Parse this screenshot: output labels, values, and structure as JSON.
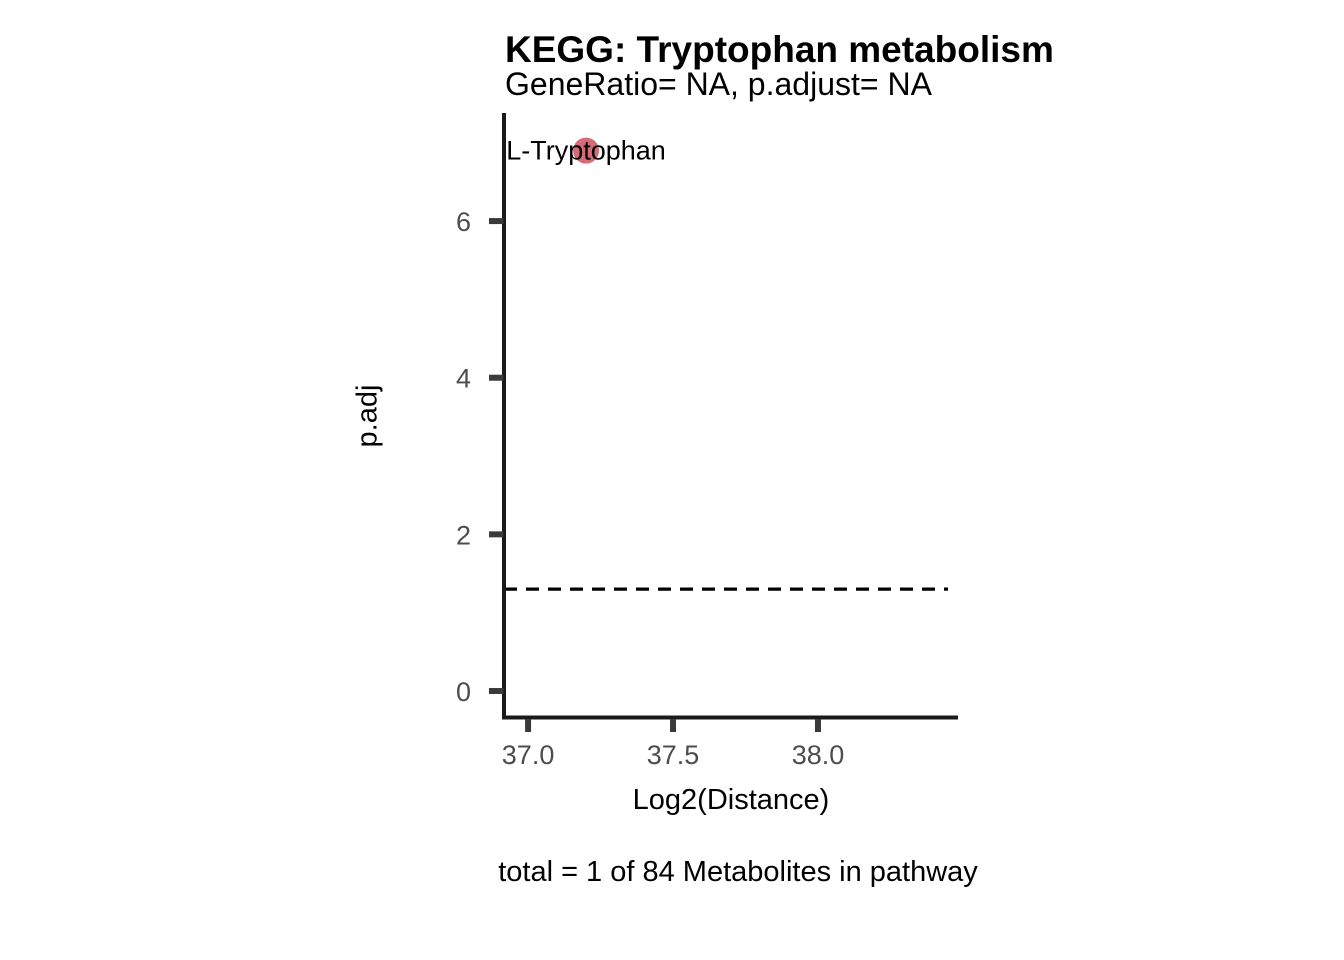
{
  "chart_data": {
    "type": "scatter",
    "title": "KEGG: Tryptophan metabolism",
    "subtitle": "GeneRatio= NA, p.adjust= NA",
    "xlabel": "Log2(Distance)",
    "ylabel": "p.adj",
    "caption": "total = 1 of 84 Metabolites in pathway",
    "x_ticks": [
      37.0,
      37.5,
      38.0
    ],
    "x_tick_labels": [
      "37.0",
      "37.5",
      "38.0"
    ],
    "y_ticks": [
      0,
      2,
      4,
      6
    ],
    "y_tick_labels": [
      "0",
      "2",
      "4",
      "6"
    ],
    "xlim": [
      36.917,
      38.483
    ],
    "ylim": [
      -0.345,
      7.38
    ],
    "grid": false,
    "legend": false,
    "points": [
      {
        "label": "L-Tryptophan",
        "x": 37.2,
        "y": 6.9,
        "color": "#d56b77"
      }
    ],
    "threshold_line": {
      "y": 1.301,
      "style": "dashed",
      "color": "#000000"
    },
    "colors": {
      "background": "#ffffff",
      "axis": "#1a1a1a",
      "tick": "#3a3a3a",
      "tick_label": "#4d4d4d",
      "text": "#000000",
      "point": "#d56b77"
    }
  }
}
